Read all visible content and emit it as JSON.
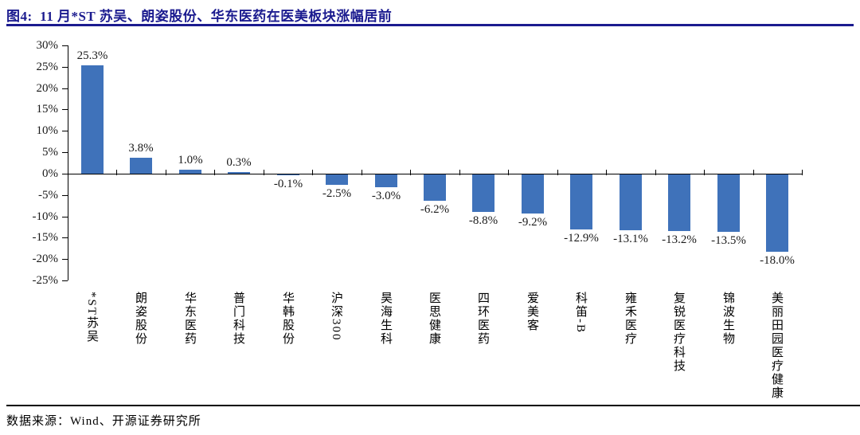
{
  "header": {
    "title": "图4:  11 月*ST 苏吴、朗姿股份、华东医药在医美板块涨幅居前"
  },
  "footer": {
    "source": "数据来源：Wind、开源证券研究所"
  },
  "colors": {
    "title_navy": "#1b1b8f",
    "bar_blue": "#3F72BA",
    "axis_black": "#000000",
    "label_gray": "#1a1a1a"
  },
  "chart_data": {
    "type": "bar",
    "title": "11 月*ST 苏吴、朗姿股份、华东医药在医美板块涨幅居前",
    "xlabel": "",
    "ylabel": "",
    "grid": "off",
    "legend": "none",
    "ylim": [
      -25,
      30
    ],
    "y_tick_step": 5,
    "y_tick_labels": [
      "30%",
      "25%",
      "20%",
      "15%",
      "10%",
      "5%",
      "0%",
      "-5%",
      "-10%",
      "-15%",
      "-20%",
      "-25%"
    ],
    "categories": [
      "*ST苏吴",
      "朗姿股份",
      "华东医药",
      "普门科技",
      "华韩股份",
      "沪深300",
      "昊海生科",
      "医思健康",
      "四环医药",
      "爱美客",
      "科笛-B",
      "雍禾医疗",
      "复锐医疗科技",
      "锦波生物",
      "美丽田园医疗健康"
    ],
    "values": [
      25.3,
      3.8,
      1.0,
      0.3,
      -0.1,
      -2.5,
      -3.0,
      -6.2,
      -8.8,
      -9.2,
      -12.9,
      -13.1,
      -13.2,
      -13.5,
      -18.0
    ],
    "value_labels": [
      "25.3%",
      "3.8%",
      "1.0%",
      "0.3%",
      "-0.1%",
      "-2.5%",
      "-3.0%",
      "-6.2%",
      "-8.8%",
      "-9.2%",
      "-12.9%",
      "-13.1%",
      "-13.2%",
      "-13.5%",
      "-18.0%"
    ]
  }
}
